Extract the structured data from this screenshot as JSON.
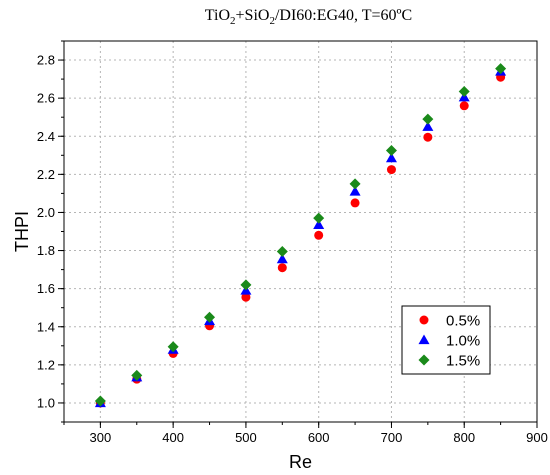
{
  "chart_data": {
    "type": "scatter",
    "title": {
      "parts": [
        {
          "text": "TiO",
          "sub": false
        },
        {
          "text": "2",
          "sub": true
        },
        {
          "text": "+SiO",
          "sub": false
        },
        {
          "text": "2",
          "sub": true
        },
        {
          "text": "/DI60:EG40, T=60ºC",
          "sub": false
        }
      ]
    },
    "xlabel": "Re",
    "ylabel": "THPI",
    "xlim": [
      250,
      900
    ],
    "ylim": [
      0.9,
      2.9
    ],
    "xticks": [
      300,
      400,
      500,
      600,
      700,
      800,
      900
    ],
    "yticks": [
      1.0,
      1.2,
      1.4,
      1.6,
      1.8,
      2.0,
      2.2,
      2.4,
      2.6,
      2.8
    ],
    "grid": true,
    "legend_position": "bottom-right",
    "x": [
      300,
      350,
      400,
      450,
      500,
      550,
      600,
      650,
      700,
      750,
      800,
      850
    ],
    "series": [
      {
        "name": "0.5%",
        "marker": "circle",
        "color": "#ff0000",
        "values": [
          1.0,
          1.125,
          1.26,
          1.405,
          1.555,
          1.71,
          1.88,
          2.05,
          2.225,
          2.395,
          2.56,
          2.71
        ]
      },
      {
        "name": "1.0%",
        "marker": "triangle",
        "color": "#0000ff",
        "values": [
          1.0,
          1.135,
          1.28,
          1.43,
          1.59,
          1.755,
          1.935,
          2.11,
          2.285,
          2.45,
          2.605,
          2.74
        ]
      },
      {
        "name": "1.5%",
        "marker": "diamond",
        "color": "#1a8a1a",
        "values": [
          1.01,
          1.145,
          1.295,
          1.45,
          1.62,
          1.795,
          1.97,
          2.15,
          2.325,
          2.49,
          2.635,
          2.755
        ]
      }
    ]
  }
}
